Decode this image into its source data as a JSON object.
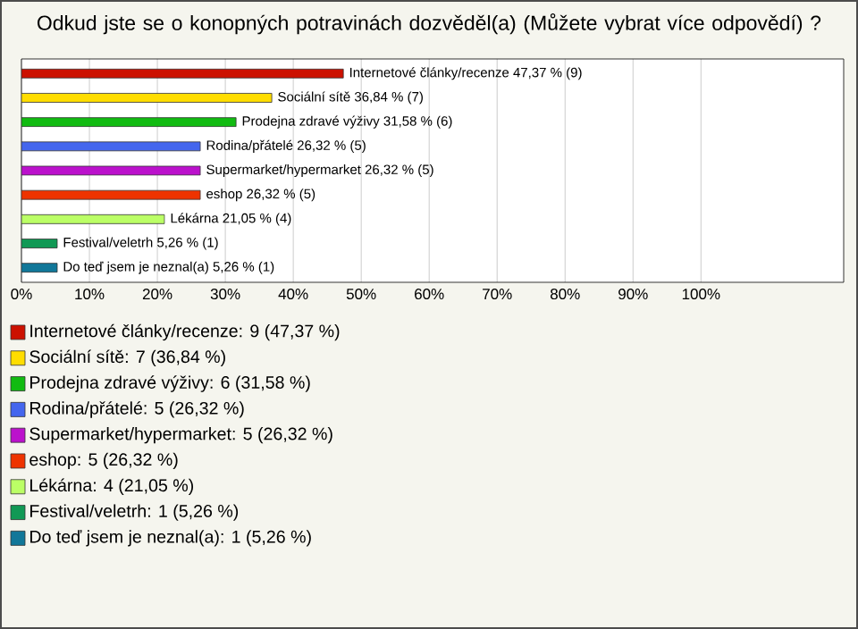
{
  "chart_data": {
    "type": "bar",
    "orientation": "horizontal",
    "title": "Odkud jste se o konopných potravinách dozvěděl(a) (Můžete vybrat více odpovědí) ?",
    "categories": [
      null,
      null,
      null,
      null,
      null,
      null,
      null,
      null,
      null
    ],
    "values": [
      47.37,
      36.84,
      31.58,
      26.32,
      26.32,
      26.32,
      21.05,
      5.26,
      5.26
    ],
    "value_labels": [
      "Internetové články/recenze 47,37 % (9)",
      "Sociální sítě 36,84 % (7)",
      "Prodejna zdravé výživy 31,58 % (6)",
      "Rodina/přátelé 26,32 % (5)",
      "Supermarket/hypermarket 26,32 % (5)",
      "eshop 26,32 % (5)",
      "Lékárna 21,05 % (4)",
      "Festival/veletrh 5,26 % (1)",
      "Do teď jsem je neznal(a) 5,26 % (1)"
    ],
    "colors": [
      "#cc1100",
      "#ffdd00",
      "#11bb11",
      "#4466ee",
      "#bb11cc",
      "#ee3300",
      "#bbff66",
      "#119955",
      "#117799"
    ],
    "xlim": [
      0,
      121
    ],
    "xticks": [
      {
        "value": 0,
        "label": "0%"
      },
      {
        "value": 10,
        "label": "10%"
      },
      {
        "value": 20,
        "label": "20%"
      },
      {
        "value": 30,
        "label": "30%"
      },
      {
        "value": 40,
        "label": "40%"
      },
      {
        "value": 50,
        "label": "50%"
      },
      {
        "value": 60,
        "label": "60%"
      },
      {
        "value": 70,
        "label": "70%"
      },
      {
        "value": 80,
        "label": "80%"
      },
      {
        "value": 90,
        "label": "90%"
      },
      {
        "value": 100,
        "label": "100%"
      }
    ],
    "grid": "x",
    "tick_labels": "x",
    "annotations": [
      "Internetové články/recenze: 9 (47,37 %)",
      "Sociální sítě: 7 (36,84 %)",
      "Prodejna zdravé výživy: 6 (31,58 %)",
      "Rodina/přátelé: 5 (26,32 %)",
      "Supermarket/hypermarket: 5 (26,32 %)",
      "eshop: 5 (26,32 %)",
      "Lékárna: 4 (21,05 %)",
      "Festival/veletrh: 1 (5,26 %)",
      "Do teď jsem je neznal(a): 1 (5,26 %)"
    ]
  }
}
